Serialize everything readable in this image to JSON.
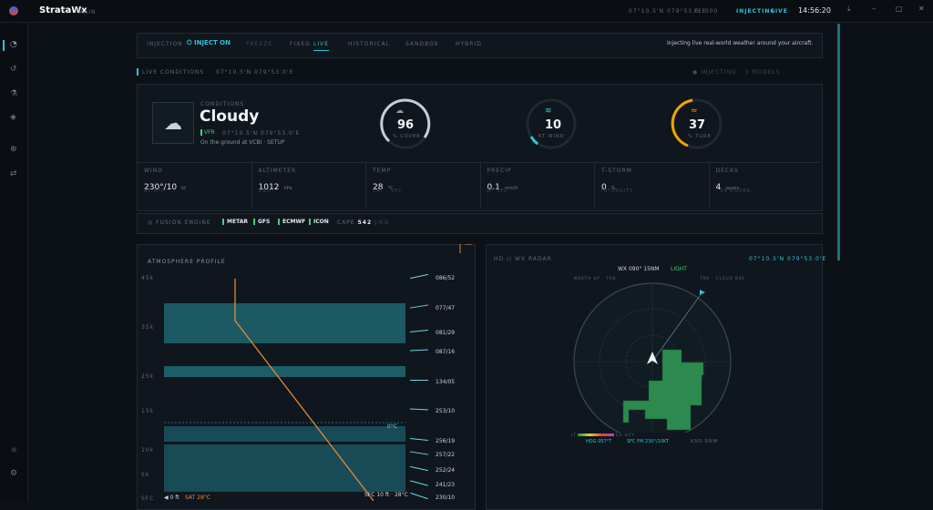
{
  "app": {
    "name": "StrataWx",
    "subtitle": "MAIN"
  },
  "status": {
    "position": "07°10.5'N 079°53.0'E",
    "flight_level": "FL 000",
    "injecting": "INJECTING",
    "mode": "LIVE",
    "time": "14:56:20"
  },
  "modes": {
    "label": "INJECTION",
    "toggle": "INJECT ON",
    "items": [
      "FREEZE",
      "FIXED",
      "LIVE",
      "HISTORICAL",
      "SANDBOX",
      "HYBRID"
    ],
    "description": "Injecting live real-world weather around your aircraft."
  },
  "live": {
    "title": "LIVE CONDITIONS",
    "position": "07°10.5'N 079°53.0'E",
    "status": "● INJECTING · 3 MODELS"
  },
  "conditions": {
    "label": "CONDITIONS",
    "summary": "Cloudy",
    "flight_rules": "VFR",
    "position": "07°10.5'N 079°53.0'E",
    "note": "On the ground at VCBI · SETUP"
  },
  "gauges": [
    {
      "value": "96",
      "unit": "% COVER"
    },
    {
      "value": "10",
      "unit": "KT WIND"
    },
    {
      "value": "37",
      "unit": "% TURB"
    }
  ],
  "stats": [
    {
      "label": "WIND",
      "value": "230°/10",
      "unit": "kt",
      "sub": "AT SFC"
    },
    {
      "label": "ALTIMETER",
      "value": "1012",
      "unit": "hPa",
      "sub": "QNH"
    },
    {
      "label": "TEMP",
      "value": "28",
      "unit": "°C",
      "sub": "SAT · SFC"
    },
    {
      "label": "PRECIP",
      "value": "0.1",
      "unit": "mm/h",
      "sub": "AT SFC"
    },
    {
      "label": "T-STORM",
      "value": "0",
      "unit": "%",
      "sub": "INTENSITY"
    },
    {
      "label": "DECKS",
      "value": "4",
      "unit": "layers",
      "sub": "· 8K COVER"
    }
  ],
  "fusion": {
    "label": "FUSION ENGINE",
    "sources": [
      "METAR",
      "GFS",
      "ECMWF",
      "ICON"
    ],
    "cape_label": "CAPE",
    "cape": "542",
    "cape_unit": "J/KG"
  },
  "profile": {
    "title": "ATMOSPHERE PROFILE",
    "altitudes": [
      "45k",
      "35k",
      "25k",
      "15k",
      "10k",
      "5k",
      "SFC"
    ],
    "winds": [
      "086/52",
      "077/47",
      "081/29",
      "087/16",
      "134/05",
      "253/10",
      "256/19",
      "257/22",
      "252/24",
      "241/23",
      "230/10"
    ],
    "freezing": "0°C",
    "surface": "SFC 10 ft · 28°C",
    "legend": "0 ft",
    "sat": "SAT 28°C"
  },
  "radar": {
    "title": "HD // WX RADAR",
    "position": "07°10.5'N 079°53.0'E",
    "range": "WX 090° 15NM",
    "intensity": "LIGHT",
    "left_note": "NORTH UP · TRK",
    "right_note": "TRK · CLOUD BSE",
    "scale_low": "LT",
    "scale_high": "EX HVY",
    "heading": "HDG 057°T",
    "surface_wind": "SFC FM 230°/10KT",
    "range_note": "KNS 8NM"
  }
}
